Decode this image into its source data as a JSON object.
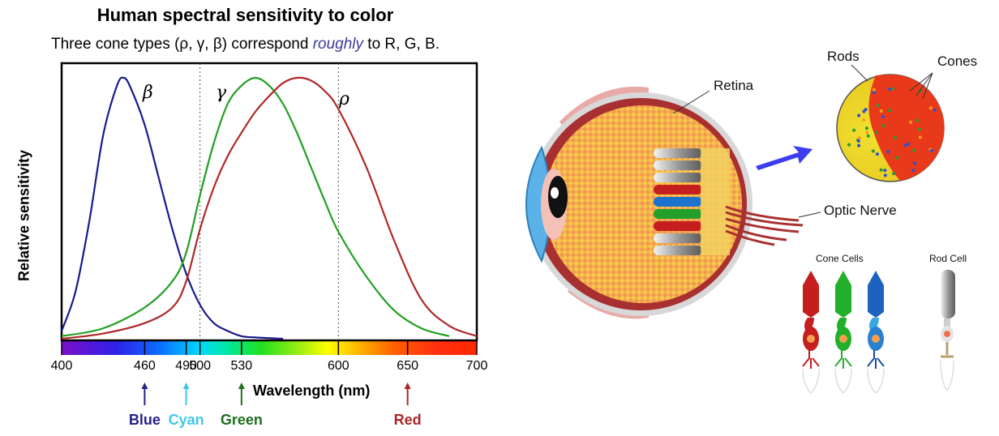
{
  "chart": {
    "title": "Human spectral sensitivity to color",
    "subtitle_prefix": "Three cone types (ρ, γ, β) correspond ",
    "subtitle_emphasis": "roughly",
    "subtitle_suffix": " to R, G, B.",
    "ylabel": "Relative sensitivity",
    "xlabel": "Wavelength (nm)",
    "curve_labels": {
      "beta": "β",
      "gamma": "γ",
      "rho": "ρ"
    },
    "color_names": [
      {
        "name": "Blue",
        "wavelength": 460,
        "color": "#22228a"
      },
      {
        "name": "Cyan",
        "wavelength": 490,
        "color": "#40c8e8"
      },
      {
        "name": "Green",
        "wavelength": 530,
        "color": "#1e6e1e"
      },
      {
        "name": "Red",
        "wavelength": 650,
        "color": "#a82828"
      }
    ]
  },
  "chart_data": {
    "type": "line",
    "title": "Human spectral sensitivity to color",
    "subtitle": "Three cone types (ρ, γ, β) correspond roughly to R, G, B.",
    "xlabel": "Wavelength (nm)",
    "ylabel": "Relative sensitivity",
    "xlim": [
      400,
      700
    ],
    "ylim": [
      0,
      1
    ],
    "x_ticks": [
      400,
      460,
      490,
      500,
      530,
      600,
      650,
      700
    ],
    "reference_lines": [
      500,
      600
    ],
    "series": [
      {
        "name": "β",
        "color": "#1a1a8c",
        "x": [
          400,
          410,
          420,
          430,
          440,
          445,
          450,
          460,
          470,
          480,
          490,
          500,
          510,
          520,
          530,
          540,
          560
        ],
        "y": [
          0.03,
          0.18,
          0.45,
          0.78,
          0.97,
          1.0,
          0.96,
          0.82,
          0.62,
          0.42,
          0.25,
          0.13,
          0.06,
          0.03,
          0.01,
          0.005,
          0.0
        ]
      },
      {
        "name": "γ",
        "color": "#22a022",
        "x": [
          400,
          430,
          460,
          480,
          490,
          500,
          510,
          520,
          530,
          540,
          550,
          560,
          570,
          580,
          590,
          600,
          620,
          640,
          660,
          680
        ],
        "y": [
          0.01,
          0.04,
          0.12,
          0.22,
          0.33,
          0.55,
          0.75,
          0.9,
          0.97,
          1.0,
          0.97,
          0.9,
          0.79,
          0.66,
          0.53,
          0.41,
          0.24,
          0.11,
          0.04,
          0.01
        ]
      },
      {
        "name": "ρ",
        "color": "#b02828",
        "x": [
          400,
          430,
          460,
          480,
          490,
          500,
          510,
          520,
          530,
          540,
          550,
          560,
          570,
          580,
          590,
          600,
          620,
          640,
          660,
          680,
          700
        ],
        "y": [
          0.0,
          0.02,
          0.06,
          0.12,
          0.22,
          0.42,
          0.58,
          0.7,
          0.79,
          0.87,
          0.93,
          0.98,
          1.0,
          0.99,
          0.95,
          0.88,
          0.66,
          0.38,
          0.15,
          0.05,
          0.01
        ]
      }
    ]
  },
  "eye": {
    "retina_label": "Retina",
    "optic_nerve_label": "Optic Nerve",
    "rods_label": "Rods",
    "cones_label": "Cones",
    "cone_cells_label": "Cone Cells",
    "rod_cell_label": "Rod Cell"
  }
}
